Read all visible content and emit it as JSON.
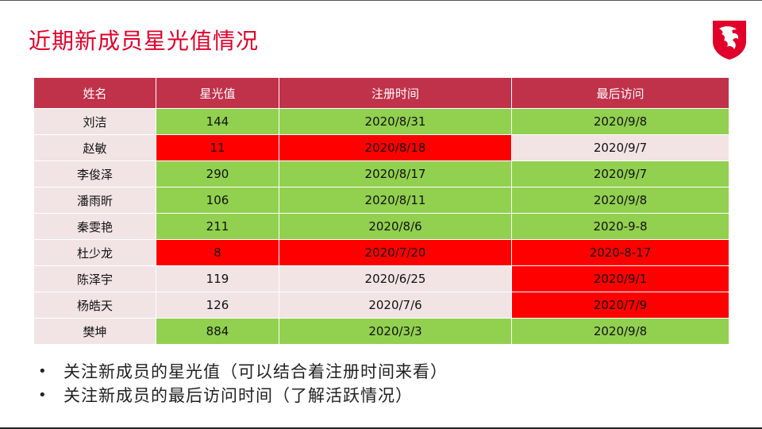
{
  "title": "近期新成员星光值情况",
  "logo_icon": "msi-dragon-shield-icon",
  "colors": {
    "title": "#e0002a",
    "header_bg": "#c0314a",
    "green": "#92d050",
    "red": "#ff0000",
    "pink": "#f2e4e4"
  },
  "table": {
    "headers": [
      "姓名",
      "星光值",
      "注册时间",
      "最后访问"
    ],
    "rows": [
      {
        "name": "刘洁",
        "star": "144",
        "reg": "2020/8/31",
        "last": "2020/9/8"
      },
      {
        "name": "赵敏",
        "star": "11",
        "reg": "2020/8/18",
        "last": "2020/9/7"
      },
      {
        "name": "李俊泽",
        "star": "290",
        "reg": "2020/8/17",
        "last": "2020/9/7"
      },
      {
        "name": "潘雨昕",
        "star": "106",
        "reg": "2020/8/11",
        "last": "2020/9/8"
      },
      {
        "name": "秦雯艳",
        "star": "211",
        "reg": "2020/8/6",
        "last": "2020-9-8"
      },
      {
        "name": "杜少龙",
        "star": "8",
        "reg": "2020/7/20",
        "last": "2020-8-17"
      },
      {
        "name": "陈泽宇",
        "star": "119",
        "reg": "2020/6/25",
        "last": "2020/9/1"
      },
      {
        "name": "杨皓天",
        "star": "126",
        "reg": "2020/7/6",
        "last": "2020/7/9"
      },
      {
        "name": "樊坤",
        "star": "884",
        "reg": "2020/3/3",
        "last": "2020/9/8"
      }
    ]
  },
  "notes": [
    "关注新成员的星光值（可以结合着注册时间来看）",
    "关注新成员的最后访问时间（了解活跃情况）"
  ]
}
